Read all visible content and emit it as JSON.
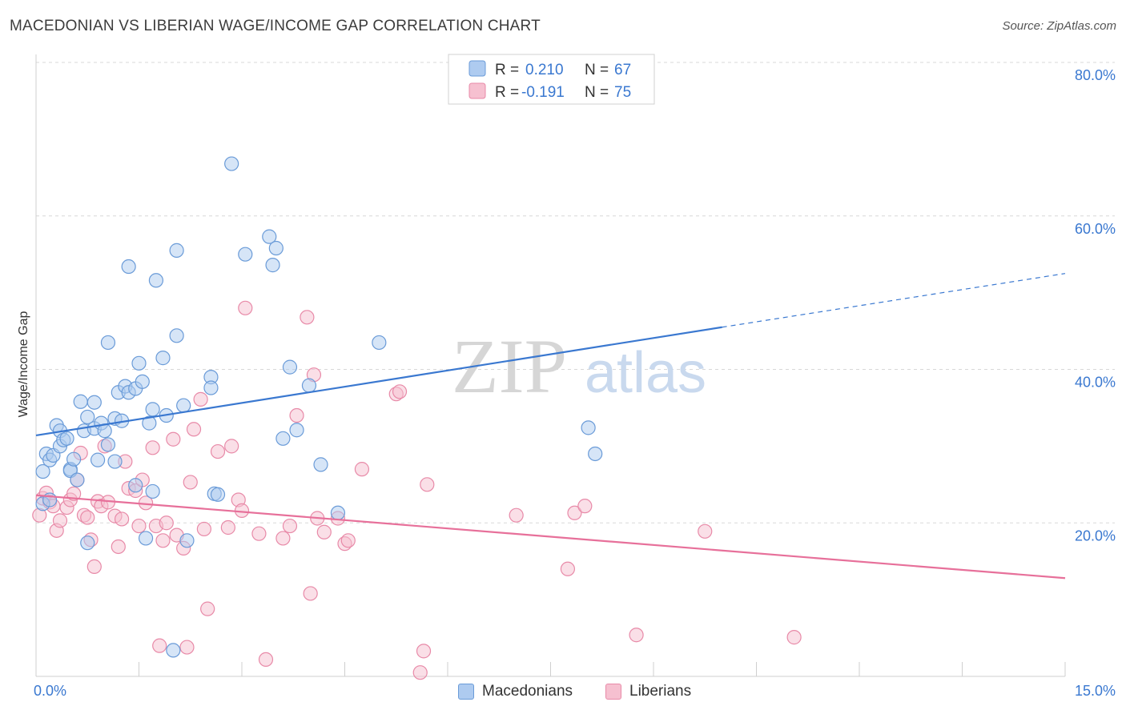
{
  "header": {
    "title": "MACEDONIAN VS LIBERIAN WAGE/INCOME GAP CORRELATION CHART",
    "source": "Source: ZipAtlas.com"
  },
  "colors": {
    "blue_fill": "#aecbf0",
    "blue_stroke": "#6a9bd8",
    "blue_line": "#3a78d0",
    "pink_fill": "#f6c0d0",
    "pink_stroke": "#e88aa8",
    "pink_line": "#e7709a",
    "value_text": "#3a78d0",
    "grid": "#d8d8d8"
  },
  "chart_data": {
    "type": "scatter",
    "title": "MACEDONIAN VS LIBERIAN WAGE/INCOME GAP CORRELATION CHART",
    "xlabel": "",
    "ylabel": "Wage/Income Gap",
    "xlim": [
      0,
      15
    ],
    "ylim": [
      0,
      80
    ],
    "x_tick_labels": [
      "0.0%",
      "15.0%"
    ],
    "y_ticks": [
      20,
      40,
      60,
      80
    ],
    "y_tick_labels": [
      "20.0%",
      "40.0%",
      "60.0%",
      "80.0%"
    ],
    "grid": true,
    "legend_top": [
      {
        "r_label": "R =",
        "r_value": "0.210",
        "n_label": "N =",
        "n_value": "67"
      },
      {
        "r_label": "R =",
        "r_value": "-0.191",
        "n_label": "N =",
        "n_value": "75"
      }
    ],
    "legend_bottom": [
      "Macedonians",
      "Liberians"
    ],
    "watermark": {
      "zip": "ZIP",
      "atlas": "atlas"
    },
    "series": [
      {
        "name": "Macedonians",
        "color": "blue",
        "trend": {
          "x0": 0,
          "y0": 31.4,
          "x1": 10.0,
          "y1": 45.5,
          "dash_to_x": 15.0,
          "dash_to_y": 52.5
        },
        "points": [
          [
            0.1,
            22.5
          ],
          [
            0.1,
            26.7
          ],
          [
            0.15,
            29.0
          ],
          [
            0.2,
            28.2
          ],
          [
            0.2,
            23.0
          ],
          [
            0.25,
            28.8
          ],
          [
            0.3,
            32.7
          ],
          [
            0.35,
            30.0
          ],
          [
            0.35,
            32.0
          ],
          [
            0.4,
            30.8
          ],
          [
            0.45,
            31.0
          ],
          [
            0.5,
            27.0
          ],
          [
            0.5,
            26.8
          ],
          [
            0.55,
            28.3
          ],
          [
            0.6,
            25.6
          ],
          [
            0.65,
            35.8
          ],
          [
            0.7,
            32.0
          ],
          [
            0.75,
            33.8
          ],
          [
            0.75,
            17.4
          ],
          [
            0.85,
            32.3
          ],
          [
            0.85,
            35.7
          ],
          [
            0.9,
            28.2
          ],
          [
            0.95,
            33.0
          ],
          [
            1.0,
            32.0
          ],
          [
            1.05,
            43.5
          ],
          [
            1.05,
            30.2
          ],
          [
            1.15,
            28.0
          ],
          [
            1.15,
            33.6
          ],
          [
            1.2,
            37.0
          ],
          [
            1.25,
            33.3
          ],
          [
            1.3,
            37.8
          ],
          [
            1.35,
            37.0
          ],
          [
            1.35,
            53.4
          ],
          [
            1.45,
            37.5
          ],
          [
            1.45,
            24.9
          ],
          [
            1.5,
            40.8
          ],
          [
            1.55,
            38.4
          ],
          [
            1.6,
            18.0
          ],
          [
            1.65,
            33.0
          ],
          [
            1.7,
            34.8
          ],
          [
            1.7,
            24.1
          ],
          [
            1.75,
            51.6
          ],
          [
            1.85,
            41.5
          ],
          [
            1.9,
            34.0
          ],
          [
            2.0,
            3.4
          ],
          [
            2.05,
            55.5
          ],
          [
            2.05,
            44.4
          ],
          [
            2.15,
            35.3
          ],
          [
            2.2,
            17.7
          ],
          [
            2.55,
            39.0
          ],
          [
            2.55,
            37.6
          ],
          [
            2.6,
            23.8
          ],
          [
            2.65,
            23.7
          ],
          [
            2.85,
            66.8
          ],
          [
            3.05,
            55.0
          ],
          [
            3.4,
            57.3
          ],
          [
            3.45,
            53.6
          ],
          [
            3.5,
            55.8
          ],
          [
            3.6,
            31.0
          ],
          [
            3.7,
            40.3
          ],
          [
            3.8,
            32.1
          ],
          [
            3.98,
            37.9
          ],
          [
            4.15,
            27.6
          ],
          [
            4.4,
            21.3
          ],
          [
            5.0,
            43.5
          ],
          [
            8.05,
            32.4
          ],
          [
            8.15,
            29.0
          ]
        ]
      },
      {
        "name": "Liberians",
        "color": "pink",
        "trend": {
          "x0": 0,
          "y0": 23.6,
          "x1": 15.0,
          "y1": 12.8
        },
        "points": [
          [
            0.05,
            21.0
          ],
          [
            0.1,
            23.2
          ],
          [
            0.15,
            23.9
          ],
          [
            0.2,
            22.7
          ],
          [
            0.25,
            22.2
          ],
          [
            0.3,
            19.0
          ],
          [
            0.35,
            20.3
          ],
          [
            0.45,
            22.0
          ],
          [
            0.5,
            23.0
          ],
          [
            0.55,
            23.8
          ],
          [
            0.6,
            25.6
          ],
          [
            0.65,
            29.1
          ],
          [
            0.7,
            21.0
          ],
          [
            0.75,
            20.7
          ],
          [
            0.8,
            17.8
          ],
          [
            0.85,
            14.3
          ],
          [
            0.9,
            22.8
          ],
          [
            0.95,
            22.2
          ],
          [
            1.0,
            30.0
          ],
          [
            1.05,
            22.7
          ],
          [
            1.15,
            20.9
          ],
          [
            1.2,
            16.9
          ],
          [
            1.25,
            20.5
          ],
          [
            1.3,
            28.0
          ],
          [
            1.35,
            24.5
          ],
          [
            1.45,
            24.2
          ],
          [
            1.5,
            19.6
          ],
          [
            1.55,
            25.6
          ],
          [
            1.6,
            22.6
          ],
          [
            1.7,
            29.8
          ],
          [
            1.75,
            19.6
          ],
          [
            1.8,
            4.0
          ],
          [
            1.85,
            17.7
          ],
          [
            1.9,
            20.0
          ],
          [
            2.0,
            30.9
          ],
          [
            2.05,
            18.4
          ],
          [
            2.15,
            16.7
          ],
          [
            2.2,
            3.8
          ],
          [
            2.25,
            25.3
          ],
          [
            2.3,
            32.2
          ],
          [
            2.4,
            36.1
          ],
          [
            2.45,
            19.2
          ],
          [
            2.5,
            8.8
          ],
          [
            2.65,
            29.3
          ],
          [
            2.8,
            19.4
          ],
          [
            2.85,
            30.0
          ],
          [
            2.95,
            23.0
          ],
          [
            3.0,
            21.6
          ],
          [
            3.05,
            48.0
          ],
          [
            3.25,
            18.6
          ],
          [
            3.35,
            2.2
          ],
          [
            3.6,
            18.0
          ],
          [
            3.7,
            19.6
          ],
          [
            3.8,
            34.0
          ],
          [
            3.95,
            46.8
          ],
          [
            4.0,
            10.8
          ],
          [
            4.05,
            39.3
          ],
          [
            4.1,
            20.6
          ],
          [
            4.2,
            18.8
          ],
          [
            4.4,
            20.6
          ],
          [
            4.5,
            17.3
          ],
          [
            4.55,
            17.7
          ],
          [
            4.75,
            27.0
          ],
          [
            5.25,
            36.8
          ],
          [
            5.3,
            37.1
          ],
          [
            5.6,
            0.5
          ],
          [
            5.65,
            3.3
          ],
          [
            5.7,
            25.0
          ],
          [
            7.0,
            21.0
          ],
          [
            7.75,
            14.0
          ],
          [
            7.85,
            21.3
          ],
          [
            8.0,
            22.2
          ],
          [
            8.75,
            5.4
          ],
          [
            9.75,
            18.9
          ],
          [
            11.05,
            5.1
          ]
        ]
      }
    ]
  }
}
